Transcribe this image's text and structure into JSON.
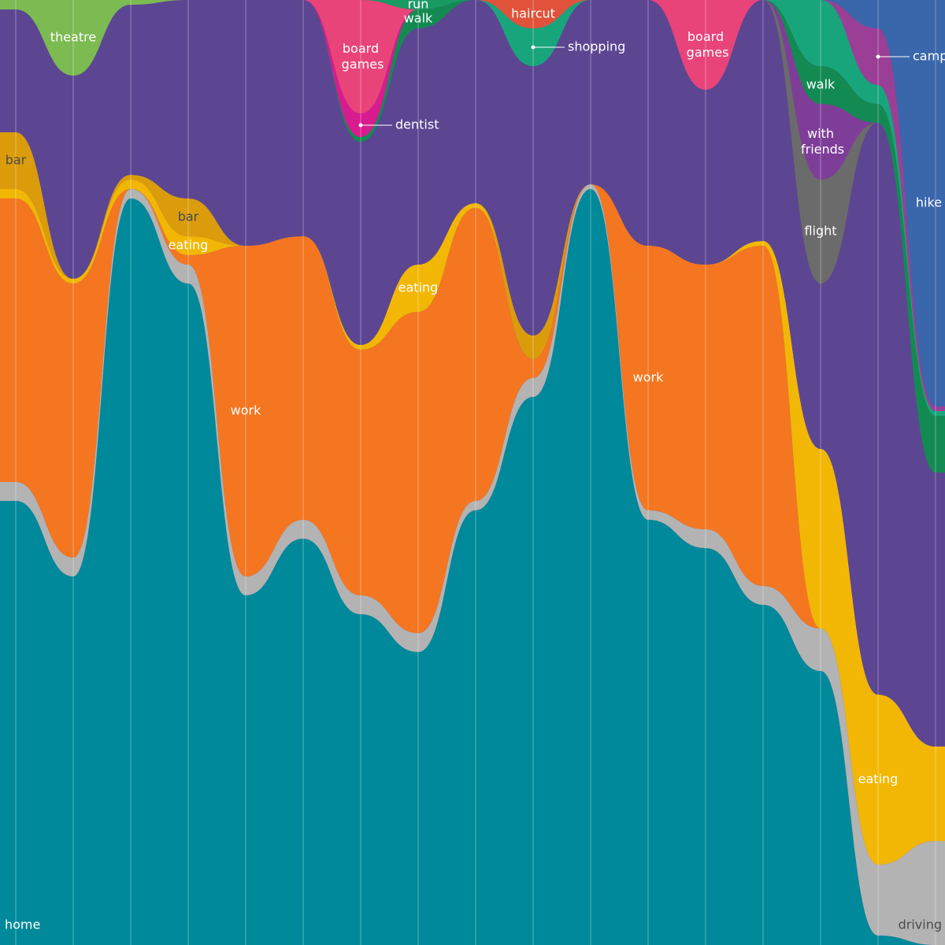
{
  "chart_data": {
    "type": "stream",
    "grid": true,
    "categories": [
      null,
      null,
      null,
      null,
      null,
      null,
      null,
      null,
      null,
      null,
      null,
      null,
      null,
      null,
      null,
      null,
      null
    ],
    "series": [
      {
        "name": "home",
        "color": "#00899a",
        "label_at": [
          0
        ],
        "values": [
          47,
          39,
          79,
          70,
          37,
          43,
          35,
          31,
          46,
          58,
          80,
          45,
          42,
          36,
          29,
          1,
          0
        ]
      },
      {
        "name": "driving",
        "color": "#b3b3b3",
        "label_color": "#4a4a4a",
        "label_at": [
          16
        ],
        "values": [
          2,
          2,
          1,
          2,
          2,
          2,
          2,
          2,
          1,
          2,
          0.5,
          1,
          2,
          2,
          4.5,
          7.5,
          11
        ]
      },
      {
        "name": "work",
        "color": "#f47621",
        "label_at": [
          4,
          11
        ],
        "values": [
          30,
          29,
          0,
          1,
          35,
          30,
          26,
          34,
          31,
          2,
          0,
          28,
          28,
          36,
          0,
          0,
          0
        ]
      },
      {
        "name": "eating",
        "color": "#f2b705",
        "label_at": [
          3,
          7,
          15
        ],
        "values": [
          1,
          0.5,
          1,
          2,
          0,
          0,
          0.5,
          5,
          0.5,
          0,
          0,
          0,
          0,
          0.5,
          19,
          18,
          10
        ]
      },
      {
        "name": "bar",
        "color": "#db9c0c",
        "label_color": "#4a4a4a",
        "label_at": [
          0,
          3
        ],
        "values": [
          6,
          0,
          0.5,
          4,
          0,
          0,
          0,
          0,
          0,
          2.5,
          0,
          0,
          0,
          0,
          0,
          0,
          0
        ]
      },
      {
        "name": null,
        "color": "#5c4692",
        "values": [
          13,
          21.5,
          18,
          21,
          26,
          25,
          21.5,
          25,
          21.5,
          28.5,
          19.5,
          26,
          18.5,
          25.5,
          17.5,
          60.5,
          29
        ]
      },
      {
        "name": "flight",
        "color": "#6b6b6b",
        "label_at": [
          14
        ],
        "values": [
          0,
          0,
          0,
          0,
          0,
          0,
          0,
          0,
          0,
          0,
          0,
          0,
          0,
          0,
          11,
          0,
          0
        ]
      },
      {
        "name": "with friends",
        "color": "#7e3e98",
        "label_at": [
          14
        ],
        "values": [
          0,
          0,
          0,
          0,
          0,
          0,
          0,
          0,
          0,
          0,
          0,
          0,
          0,
          0,
          8,
          0,
          0
        ]
      },
      {
        "name": "walk",
        "color": "#138a52",
        "label_at": [
          7,
          14
        ],
        "values": [
          0,
          0,
          0,
          0,
          0,
          0,
          0.5,
          2,
          0,
          0,
          0,
          0,
          0,
          0,
          4,
          2,
          6
        ]
      },
      {
        "name": "shopping",
        "color": "#19a57c",
        "callout": true,
        "label_at": [
          9
        ],
        "values": [
          0,
          0,
          0,
          0,
          0,
          0,
          0,
          0,
          0,
          4,
          0,
          0,
          0,
          0,
          7,
          2,
          0.5
        ]
      },
      {
        "name": "dentist",
        "color": "#d81b8f",
        "callout": true,
        "label_at": [
          6
        ],
        "values": [
          0,
          0,
          0,
          0,
          0,
          0,
          2.5,
          0,
          0,
          0,
          0,
          0,
          0,
          0,
          0,
          0,
          0
        ]
      },
      {
        "name": "board games",
        "color": "#e8447a",
        "label_at": [
          6,
          12
        ],
        "values": [
          0,
          0,
          0,
          0,
          0,
          0,
          12,
          0,
          0,
          0,
          0,
          0,
          9.5,
          0,
          0,
          0,
          0
        ]
      },
      {
        "name": "run",
        "color": "#1a9a63",
        "label_at": [
          7
        ],
        "values": [
          0,
          0,
          0,
          0,
          0,
          0,
          0,
          1,
          0,
          0,
          0,
          0,
          0,
          0,
          0,
          0,
          0
        ]
      },
      {
        "name": "haircut",
        "color": "#e0533a",
        "label_at": [
          9
        ],
        "values": [
          0,
          0,
          0,
          0,
          0,
          0,
          0,
          0,
          0,
          3,
          0,
          0,
          0,
          0,
          0,
          0,
          0
        ]
      },
      {
        "name": "theatre",
        "color": "#7cba52",
        "label_at": [
          1
        ],
        "values": [
          1,
          8,
          0.5,
          0,
          0,
          0,
          0,
          0,
          0,
          0,
          0,
          0,
          0,
          0,
          0,
          0,
          0
        ]
      },
      {
        "name": "camping",
        "color": "#9b3f96",
        "callout": true,
        "label_at": [
          15
        ],
        "values": [
          0,
          0,
          0,
          0,
          0,
          0,
          0,
          0,
          0,
          0,
          0,
          0,
          0,
          0,
          0,
          6,
          0.5
        ]
      },
      {
        "name": "hike",
        "color": "#3a66ab",
        "label_at": [
          16
        ],
        "values": [
          0,
          0,
          0,
          0,
          0,
          0,
          0,
          0,
          0,
          0,
          0,
          0,
          0,
          0,
          0,
          3,
          43
        ]
      }
    ]
  }
}
